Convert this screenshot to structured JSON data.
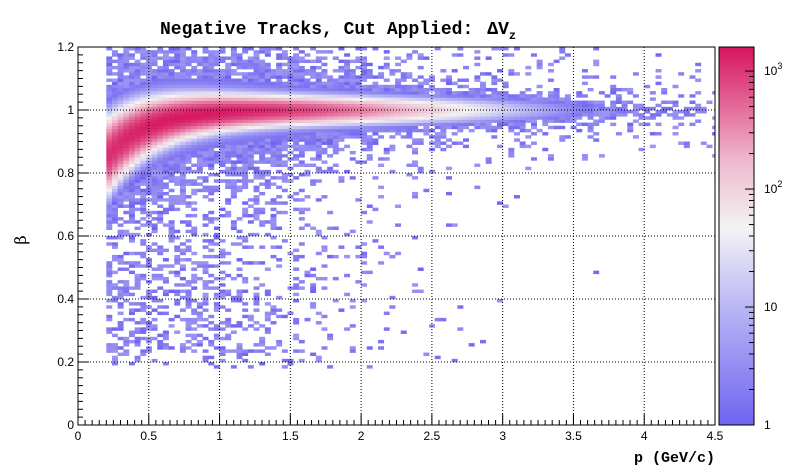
{
  "chart_data": {
    "type": "heatmap",
    "title": "Negative Tracks, Cut Applied:",
    "title_symbol": "ΔV",
    "title_subscript": "z",
    "xlabel": "p (GeV/c)",
    "ylabel": "β",
    "xlim": [
      0,
      4.5
    ],
    "ylim": [
      0,
      1.2
    ],
    "x_ticks": [
      "0",
      "0.5",
      "1",
      "1.5",
      "2",
      "2.5",
      "3",
      "3.5",
      "4",
      "4.5"
    ],
    "y_ticks": [
      "0",
      "0.2",
      "0.4",
      "0.6",
      "0.8",
      "1",
      "1.2"
    ],
    "grid": true,
    "z_scale": "log",
    "zlim": [
      1,
      1600
    ],
    "colorbar_ticks": [
      {
        "value": 1,
        "label": "1"
      },
      {
        "value": 10,
        "label": "10"
      },
      {
        "value": 100,
        "label": "10",
        "sup": "2"
      },
      {
        "value": 1000,
        "label": "10",
        "sup": "3"
      }
    ],
    "colors": {
      "low": "#6f64f0",
      "mid": "#f2f2f2",
      "high": "#d6145f"
    },
    "bands": [
      {
        "name": "main band",
        "beta": "≈1 (0.85 at p=0.2 → 1.0 above p=1)",
        "peak_counts": 1500,
        "x_range": [
          0.2,
          4.5
        ]
      },
      {
        "name": "diffuse background",
        "beta_range": [
          0.18,
          1.2
        ],
        "counts": "1–10",
        "x_range": [
          0.2,
          3
        ]
      }
    ]
  }
}
